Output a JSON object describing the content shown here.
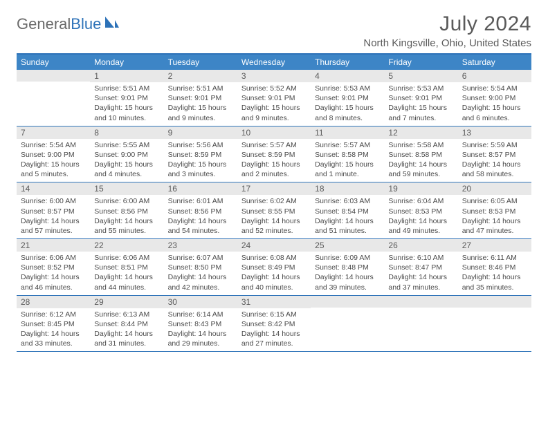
{
  "brand": {
    "part1": "General",
    "part2": "Blue"
  },
  "title": "July 2024",
  "location": "North Kingsville, Ohio, United States",
  "colors": {
    "accent": "#2d72b8",
    "header_bg": "#3d85c6",
    "daynum_bg": "#e8e8e8",
    "text_muted": "#5a5a5a",
    "text_body": "#4a4a4a"
  },
  "day_headers": [
    "Sunday",
    "Monday",
    "Tuesday",
    "Wednesday",
    "Thursday",
    "Friday",
    "Saturday"
  ],
  "weeks": [
    [
      {
        "blank": true
      },
      {
        "n": "1",
        "sr": "Sunrise: 5:51 AM",
        "ss": "Sunset: 9:01 PM",
        "dl": "Daylight: 15 hours and 10 minutes."
      },
      {
        "n": "2",
        "sr": "Sunrise: 5:51 AM",
        "ss": "Sunset: 9:01 PM",
        "dl": "Daylight: 15 hours and 9 minutes."
      },
      {
        "n": "3",
        "sr": "Sunrise: 5:52 AM",
        "ss": "Sunset: 9:01 PM",
        "dl": "Daylight: 15 hours and 9 minutes."
      },
      {
        "n": "4",
        "sr": "Sunrise: 5:53 AM",
        "ss": "Sunset: 9:01 PM",
        "dl": "Daylight: 15 hours and 8 minutes."
      },
      {
        "n": "5",
        "sr": "Sunrise: 5:53 AM",
        "ss": "Sunset: 9:01 PM",
        "dl": "Daylight: 15 hours and 7 minutes."
      },
      {
        "n": "6",
        "sr": "Sunrise: 5:54 AM",
        "ss": "Sunset: 9:00 PM",
        "dl": "Daylight: 15 hours and 6 minutes."
      }
    ],
    [
      {
        "n": "7",
        "sr": "Sunrise: 5:54 AM",
        "ss": "Sunset: 9:00 PM",
        "dl": "Daylight: 15 hours and 5 minutes."
      },
      {
        "n": "8",
        "sr": "Sunrise: 5:55 AM",
        "ss": "Sunset: 9:00 PM",
        "dl": "Daylight: 15 hours and 4 minutes."
      },
      {
        "n": "9",
        "sr": "Sunrise: 5:56 AM",
        "ss": "Sunset: 8:59 PM",
        "dl": "Daylight: 15 hours and 3 minutes."
      },
      {
        "n": "10",
        "sr": "Sunrise: 5:57 AM",
        "ss": "Sunset: 8:59 PM",
        "dl": "Daylight: 15 hours and 2 minutes."
      },
      {
        "n": "11",
        "sr": "Sunrise: 5:57 AM",
        "ss": "Sunset: 8:58 PM",
        "dl": "Daylight: 15 hours and 1 minute."
      },
      {
        "n": "12",
        "sr": "Sunrise: 5:58 AM",
        "ss": "Sunset: 8:58 PM",
        "dl": "Daylight: 14 hours and 59 minutes."
      },
      {
        "n": "13",
        "sr": "Sunrise: 5:59 AM",
        "ss": "Sunset: 8:57 PM",
        "dl": "Daylight: 14 hours and 58 minutes."
      }
    ],
    [
      {
        "n": "14",
        "sr": "Sunrise: 6:00 AM",
        "ss": "Sunset: 8:57 PM",
        "dl": "Daylight: 14 hours and 57 minutes."
      },
      {
        "n": "15",
        "sr": "Sunrise: 6:00 AM",
        "ss": "Sunset: 8:56 PM",
        "dl": "Daylight: 14 hours and 55 minutes."
      },
      {
        "n": "16",
        "sr": "Sunrise: 6:01 AM",
        "ss": "Sunset: 8:56 PM",
        "dl": "Daylight: 14 hours and 54 minutes."
      },
      {
        "n": "17",
        "sr": "Sunrise: 6:02 AM",
        "ss": "Sunset: 8:55 PM",
        "dl": "Daylight: 14 hours and 52 minutes."
      },
      {
        "n": "18",
        "sr": "Sunrise: 6:03 AM",
        "ss": "Sunset: 8:54 PM",
        "dl": "Daylight: 14 hours and 51 minutes."
      },
      {
        "n": "19",
        "sr": "Sunrise: 6:04 AM",
        "ss": "Sunset: 8:53 PM",
        "dl": "Daylight: 14 hours and 49 minutes."
      },
      {
        "n": "20",
        "sr": "Sunrise: 6:05 AM",
        "ss": "Sunset: 8:53 PM",
        "dl": "Daylight: 14 hours and 47 minutes."
      }
    ],
    [
      {
        "n": "21",
        "sr": "Sunrise: 6:06 AM",
        "ss": "Sunset: 8:52 PM",
        "dl": "Daylight: 14 hours and 46 minutes."
      },
      {
        "n": "22",
        "sr": "Sunrise: 6:06 AM",
        "ss": "Sunset: 8:51 PM",
        "dl": "Daylight: 14 hours and 44 minutes."
      },
      {
        "n": "23",
        "sr": "Sunrise: 6:07 AM",
        "ss": "Sunset: 8:50 PM",
        "dl": "Daylight: 14 hours and 42 minutes."
      },
      {
        "n": "24",
        "sr": "Sunrise: 6:08 AM",
        "ss": "Sunset: 8:49 PM",
        "dl": "Daylight: 14 hours and 40 minutes."
      },
      {
        "n": "25",
        "sr": "Sunrise: 6:09 AM",
        "ss": "Sunset: 8:48 PM",
        "dl": "Daylight: 14 hours and 39 minutes."
      },
      {
        "n": "26",
        "sr": "Sunrise: 6:10 AM",
        "ss": "Sunset: 8:47 PM",
        "dl": "Daylight: 14 hours and 37 minutes."
      },
      {
        "n": "27",
        "sr": "Sunrise: 6:11 AM",
        "ss": "Sunset: 8:46 PM",
        "dl": "Daylight: 14 hours and 35 minutes."
      }
    ],
    [
      {
        "n": "28",
        "sr": "Sunrise: 6:12 AM",
        "ss": "Sunset: 8:45 PM",
        "dl": "Daylight: 14 hours and 33 minutes."
      },
      {
        "n": "29",
        "sr": "Sunrise: 6:13 AM",
        "ss": "Sunset: 8:44 PM",
        "dl": "Daylight: 14 hours and 31 minutes."
      },
      {
        "n": "30",
        "sr": "Sunrise: 6:14 AM",
        "ss": "Sunset: 8:43 PM",
        "dl": "Daylight: 14 hours and 29 minutes."
      },
      {
        "n": "31",
        "sr": "Sunrise: 6:15 AM",
        "ss": "Sunset: 8:42 PM",
        "dl": "Daylight: 14 hours and 27 minutes."
      },
      {
        "blank": true
      },
      {
        "blank": true
      },
      {
        "blank": true
      }
    ]
  ]
}
